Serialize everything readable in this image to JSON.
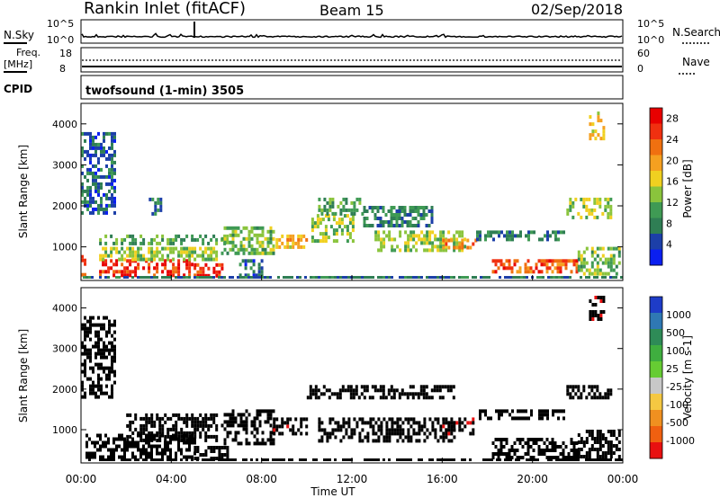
{
  "header": {
    "station": "Rankin Inlet (fitACF)",
    "beam": "Beam 15",
    "date": "02/Sep/2018"
  },
  "strip_labels": {
    "nsky": "N.Sky",
    "nsearch": "N.Search",
    "freq": "Freq.",
    "freq_unit": "[MHz]",
    "nave": "Nave",
    "cpid": "CPID",
    "cpid_value": "twofsound (1-min) 3505"
  },
  "strip_ticks": {
    "noise_top": "10^5",
    "noise_bottom": "10^0",
    "freq_top": "18",
    "freq_bottom": "8",
    "nave_top": "60",
    "nave_bottom": "0"
  },
  "colors": {
    "power_scale": [
      "#0a1ff0",
      "#1c3fa8",
      "#2f7e54",
      "#3f9a54",
      "#8ac43c",
      "#f0d020",
      "#f5a020",
      "#f07010",
      "#f03010",
      "#e80000"
    ],
    "velocity_scale": [
      "#1e3cc8",
      "#2f78b4",
      "#2e8b57",
      "#3fae3f",
      "#66cc33",
      "#c8c8c8",
      "#f5c842",
      "#f09020",
      "#f06010",
      "#e81010"
    ],
    "ground_scatter": "#c8c8c8"
  },
  "chart_data": [
    {
      "type": "heatmap",
      "panel": "power",
      "ylabel": "Slant Range [km]",
      "y_ticks": [
        "1000",
        "2000",
        "3000",
        "4000"
      ],
      "ylim": [
        180,
        4500
      ],
      "colorbar_label": "Power [dB]",
      "colorbar_ticks": [
        "4",
        "8",
        "12",
        "16",
        "20",
        "24",
        "28"
      ],
      "colorbar_range": [
        0,
        30
      ],
      "blobs": [
        {
          "t": [
            0.0,
            0.2
          ],
          "r": [
            300,
            800
          ],
          "v": 22
        },
        {
          "t": [
            0.8,
            5.0
          ],
          "r": [
            300,
            700
          ],
          "v": 26
        },
        {
          "t": [
            5.0,
            6.2
          ],
          "r": [
            300,
            600
          ],
          "v": 27
        },
        {
          "t": [
            0.8,
            6.0
          ],
          "r": [
            700,
            1000
          ],
          "v": 14
        },
        {
          "t": [
            0.8,
            6.5
          ],
          "r": [
            1050,
            1300
          ],
          "v": 10
        },
        {
          "t": [
            6.2,
            8.5
          ],
          "r": [
            800,
            1500
          ],
          "v": 12
        },
        {
          "t": [
            7.0,
            8.0
          ],
          "r": [
            300,
            700
          ],
          "v": 6
        },
        {
          "t": [
            8.5,
            10.0
          ],
          "r": [
            1000,
            1300
          ],
          "v": 18
        },
        {
          "t": [
            10.2,
            12.0
          ],
          "r": [
            1100,
            1800
          ],
          "v": 14
        },
        {
          "t": [
            10.5,
            12.5
          ],
          "r": [
            1800,
            2200
          ],
          "v": 10
        },
        {
          "t": [
            12.5,
            15.5
          ],
          "r": [
            1500,
            2000
          ],
          "v": 8
        },
        {
          "t": [
            13.0,
            17.0
          ],
          "r": [
            900,
            1400
          ],
          "v": 14
        },
        {
          "t": [
            16.0,
            17.5
          ],
          "r": [
            950,
            1200
          ],
          "v": 22
        },
        {
          "t": [
            17.5,
            21.5
          ],
          "r": [
            1200,
            1400
          ],
          "v": 8
        },
        {
          "t": [
            18.2,
            22.0
          ],
          "r": [
            350,
            700
          ],
          "v": 24
        },
        {
          "t": [
            21.5,
            23.5
          ],
          "r": [
            1700,
            2200
          ],
          "v": 14
        },
        {
          "t": [
            22.0,
            23.9
          ],
          "r": [
            300,
            1000
          ],
          "v": 12
        },
        {
          "t": [
            0.0,
            1.5
          ],
          "r": [
            1800,
            3800
          ],
          "v": 6
        },
        {
          "t": [
            3.0,
            3.5
          ],
          "r": [
            1800,
            2200
          ],
          "v": 8
        },
        {
          "t": [
            22.5,
            23.2
          ],
          "r": [
            3600,
            4300
          ],
          "v": 18
        }
      ]
    },
    {
      "type": "heatmap",
      "panel": "velocity",
      "xlabel": "Time UT",
      "ylabel": "Slant Range [km]",
      "x_ticks": [
        "00:00",
        "04:00",
        "08:00",
        "12:00",
        "16:00",
        "20:00",
        "00:00"
      ],
      "y_ticks": [
        "1000",
        "2000",
        "3000",
        "4000"
      ],
      "ylim": [
        180,
        4500
      ],
      "xlim_hours": [
        0,
        24
      ],
      "colorbar_label": "Velocity [m s-1]",
      "colorbar_ticks": [
        "1000",
        "500",
        "100",
        "25",
        "-25",
        "-100",
        "-500",
        "-1000"
      ],
      "blobs": [
        {
          "t": [
            0.2,
            5.0
          ],
          "r": [
            300,
            900
          ],
          "v": 3
        },
        {
          "t": [
            2.0,
            6.0
          ],
          "r": [
            700,
            1400
          ],
          "v": 5
        },
        {
          "t": [
            5.0,
            6.5
          ],
          "r": [
            300,
            600
          ],
          "v": 2
        },
        {
          "t": [
            6.2,
            8.5
          ],
          "r": [
            700,
            1500
          ],
          "v": 4
        },
        {
          "t": [
            8.5,
            10.0
          ],
          "r": [
            900,
            1300
          ],
          "v": 8
        },
        {
          "t": [
            10.0,
            16.5
          ],
          "r": [
            1800,
            2100
          ],
          "v": 5
        },
        {
          "t": [
            10.5,
            16.5
          ],
          "r": [
            700,
            1300
          ],
          "v": 7
        },
        {
          "t": [
            16.0,
            17.5
          ],
          "r": [
            900,
            1300
          ],
          "v": 8
        },
        {
          "t": [
            17.5,
            21.5
          ],
          "r": [
            1300,
            1500
          ],
          "v": 5
        },
        {
          "t": [
            18.2,
            22.0
          ],
          "r": [
            300,
            800
          ],
          "v": 7
        },
        {
          "t": [
            21.5,
            23.5
          ],
          "r": [
            1800,
            2100
          ],
          "v": 5
        },
        {
          "t": [
            22.0,
            23.9
          ],
          "r": [
            300,
            1000
          ],
          "v": 7
        },
        {
          "t": [
            0.0,
            1.5
          ],
          "r": [
            1800,
            3800
          ],
          "v": 5
        },
        {
          "t": [
            22.5,
            23.2
          ],
          "r": [
            3700,
            4300
          ],
          "v": 8
        }
      ]
    }
  ]
}
